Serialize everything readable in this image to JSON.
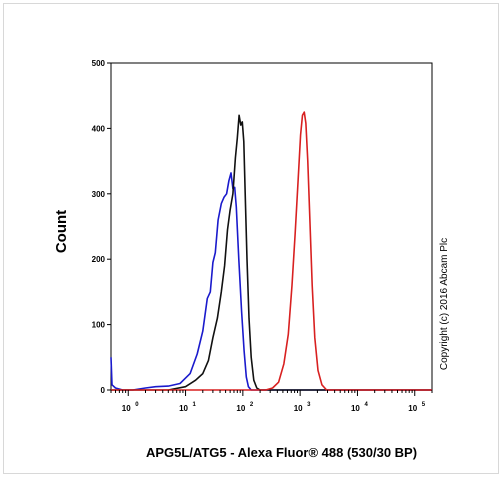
{
  "chart_data": {
    "type": "line",
    "xlabel": "APG5L/ATG5 - Alexa Fluor® 488 (530/30 BP)",
    "ylabel": "Count",
    "copyright": "Copyright (c) 2016 Abcam Plc",
    "xscale": "log",
    "xlim": [
      0.5,
      200000
    ],
    "ylim": [
      0,
      500
    ],
    "yticks": [
      0,
      100,
      200,
      300,
      400,
      500
    ],
    "xticks": [
      {
        "value": 1,
        "base": "10",
        "exp": "0"
      },
      {
        "value": 10,
        "base": "10",
        "exp": "1"
      },
      {
        "value": 100,
        "base": "10",
        "exp": "2"
      },
      {
        "value": 1000,
        "base": "10",
        "exp": "3"
      },
      {
        "value": 10000,
        "base": "10",
        "exp": "4"
      },
      {
        "value": 100000,
        "base": "10",
        "exp": "5"
      }
    ],
    "grid": false,
    "series": [
      {
        "color": "#1a1acc",
        "points": [
          [
            0.5,
            50
          ],
          [
            0.52,
            8
          ],
          [
            0.6,
            3
          ],
          [
            0.8,
            0
          ],
          [
            1.2,
            0
          ],
          [
            2,
            3
          ],
          [
            3,
            5
          ],
          [
            5,
            6
          ],
          [
            8,
            10
          ],
          [
            12,
            25
          ],
          [
            16,
            55
          ],
          [
            20,
            90
          ],
          [
            24,
            140
          ],
          [
            27,
            150
          ],
          [
            30,
            195
          ],
          [
            33,
            210
          ],
          [
            37,
            260
          ],
          [
            42,
            285
          ],
          [
            47,
            295
          ],
          [
            52,
            300
          ],
          [
            57,
            320
          ],
          [
            62,
            332
          ],
          [
            67,
            308
          ],
          [
            72,
            310
          ],
          [
            77,
            280
          ],
          [
            85,
            200
          ],
          [
            95,
            120
          ],
          [
            105,
            60
          ],
          [
            115,
            20
          ],
          [
            125,
            5
          ],
          [
            140,
            0
          ],
          [
            200000,
            0
          ]
        ]
      },
      {
        "color": "#111111",
        "points": [
          [
            0.5,
            0
          ],
          [
            5,
            0
          ],
          [
            10,
            5
          ],
          [
            15,
            15
          ],
          [
            20,
            25
          ],
          [
            25,
            45
          ],
          [
            30,
            80
          ],
          [
            36,
            110
          ],
          [
            42,
            150
          ],
          [
            48,
            190
          ],
          [
            54,
            245
          ],
          [
            60,
            275
          ],
          [
            67,
            300
          ],
          [
            74,
            355
          ],
          [
            80,
            385
          ],
          [
            86,
            420
          ],
          [
            92,
            405
          ],
          [
            98,
            410
          ],
          [
            104,
            380
          ],
          [
            110,
            300
          ],
          [
            118,
            200
          ],
          [
            128,
            110
          ],
          [
            140,
            50
          ],
          [
            155,
            15
          ],
          [
            175,
            3
          ],
          [
            200,
            0
          ],
          [
            200000,
            0
          ]
        ]
      },
      {
        "color": "#d82020",
        "points": [
          [
            0.5,
            0
          ],
          [
            250,
            0
          ],
          [
            330,
            3
          ],
          [
            420,
            12
          ],
          [
            520,
            40
          ],
          [
            620,
            85
          ],
          [
            720,
            160
          ],
          [
            820,
            240
          ],
          [
            920,
            320
          ],
          [
            1020,
            390
          ],
          [
            1100,
            420
          ],
          [
            1180,
            425
          ],
          [
            1260,
            408
          ],
          [
            1360,
            350
          ],
          [
            1480,
            260
          ],
          [
            1620,
            160
          ],
          [
            1800,
            80
          ],
          [
            2050,
            30
          ],
          [
            2400,
            8
          ],
          [
            2900,
            0
          ],
          [
            200000,
            0
          ]
        ]
      }
    ]
  }
}
